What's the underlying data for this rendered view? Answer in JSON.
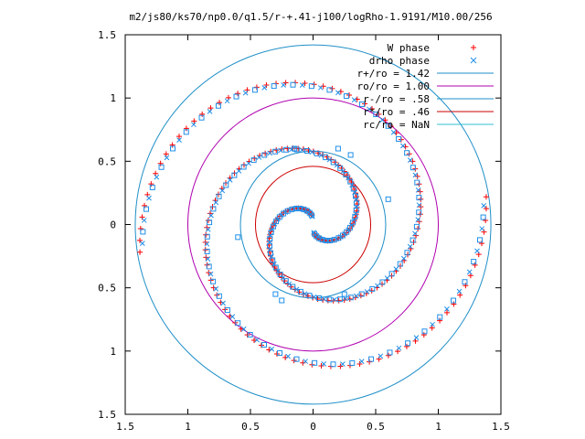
{
  "chart_data": {
    "type": "scatter",
    "title": "m2/js80/ks70/np0.0/q1.5/r-+.41-j100/logRho-1.9191/M10.00/256",
    "xlim": [
      -1.5,
      1.5
    ],
    "ylim": [
      -1.5,
      1.5
    ],
    "x_ticks": [
      "1.5",
      "1",
      "0.5",
      "0",
      "0.5",
      "1",
      "1.5"
    ],
    "y_ticks": [
      "1.5",
      "1",
      "0.5",
      "0",
      "0.5",
      "1",
      "1.5"
    ],
    "grid": false,
    "legend_position": "top-right",
    "circles": [
      {
        "name": "r+/ro = 1.42",
        "radius": 1.42,
        "color": "#1f8fc8"
      },
      {
        "name": "ro/ro = 1.00",
        "radius": 1.0,
        "color": "#b000b0"
      },
      {
        "name": "r-/ro = .58",
        "radius": 0.58,
        "color": "#1f8fc8"
      },
      {
        "name": "r*/ro = .46",
        "radius": 0.46,
        "color": "#cc0000"
      },
      {
        "name": "rc/ro = NaN",
        "radius": null,
        "color": "#33c0d0"
      }
    ],
    "series": [
      {
        "name": "W phase",
        "marker": "+",
        "color": "#ff0000"
      },
      {
        "name": "drho phase",
        "marker": "x",
        "color": "#1f8fe8"
      }
    ]
  }
}
